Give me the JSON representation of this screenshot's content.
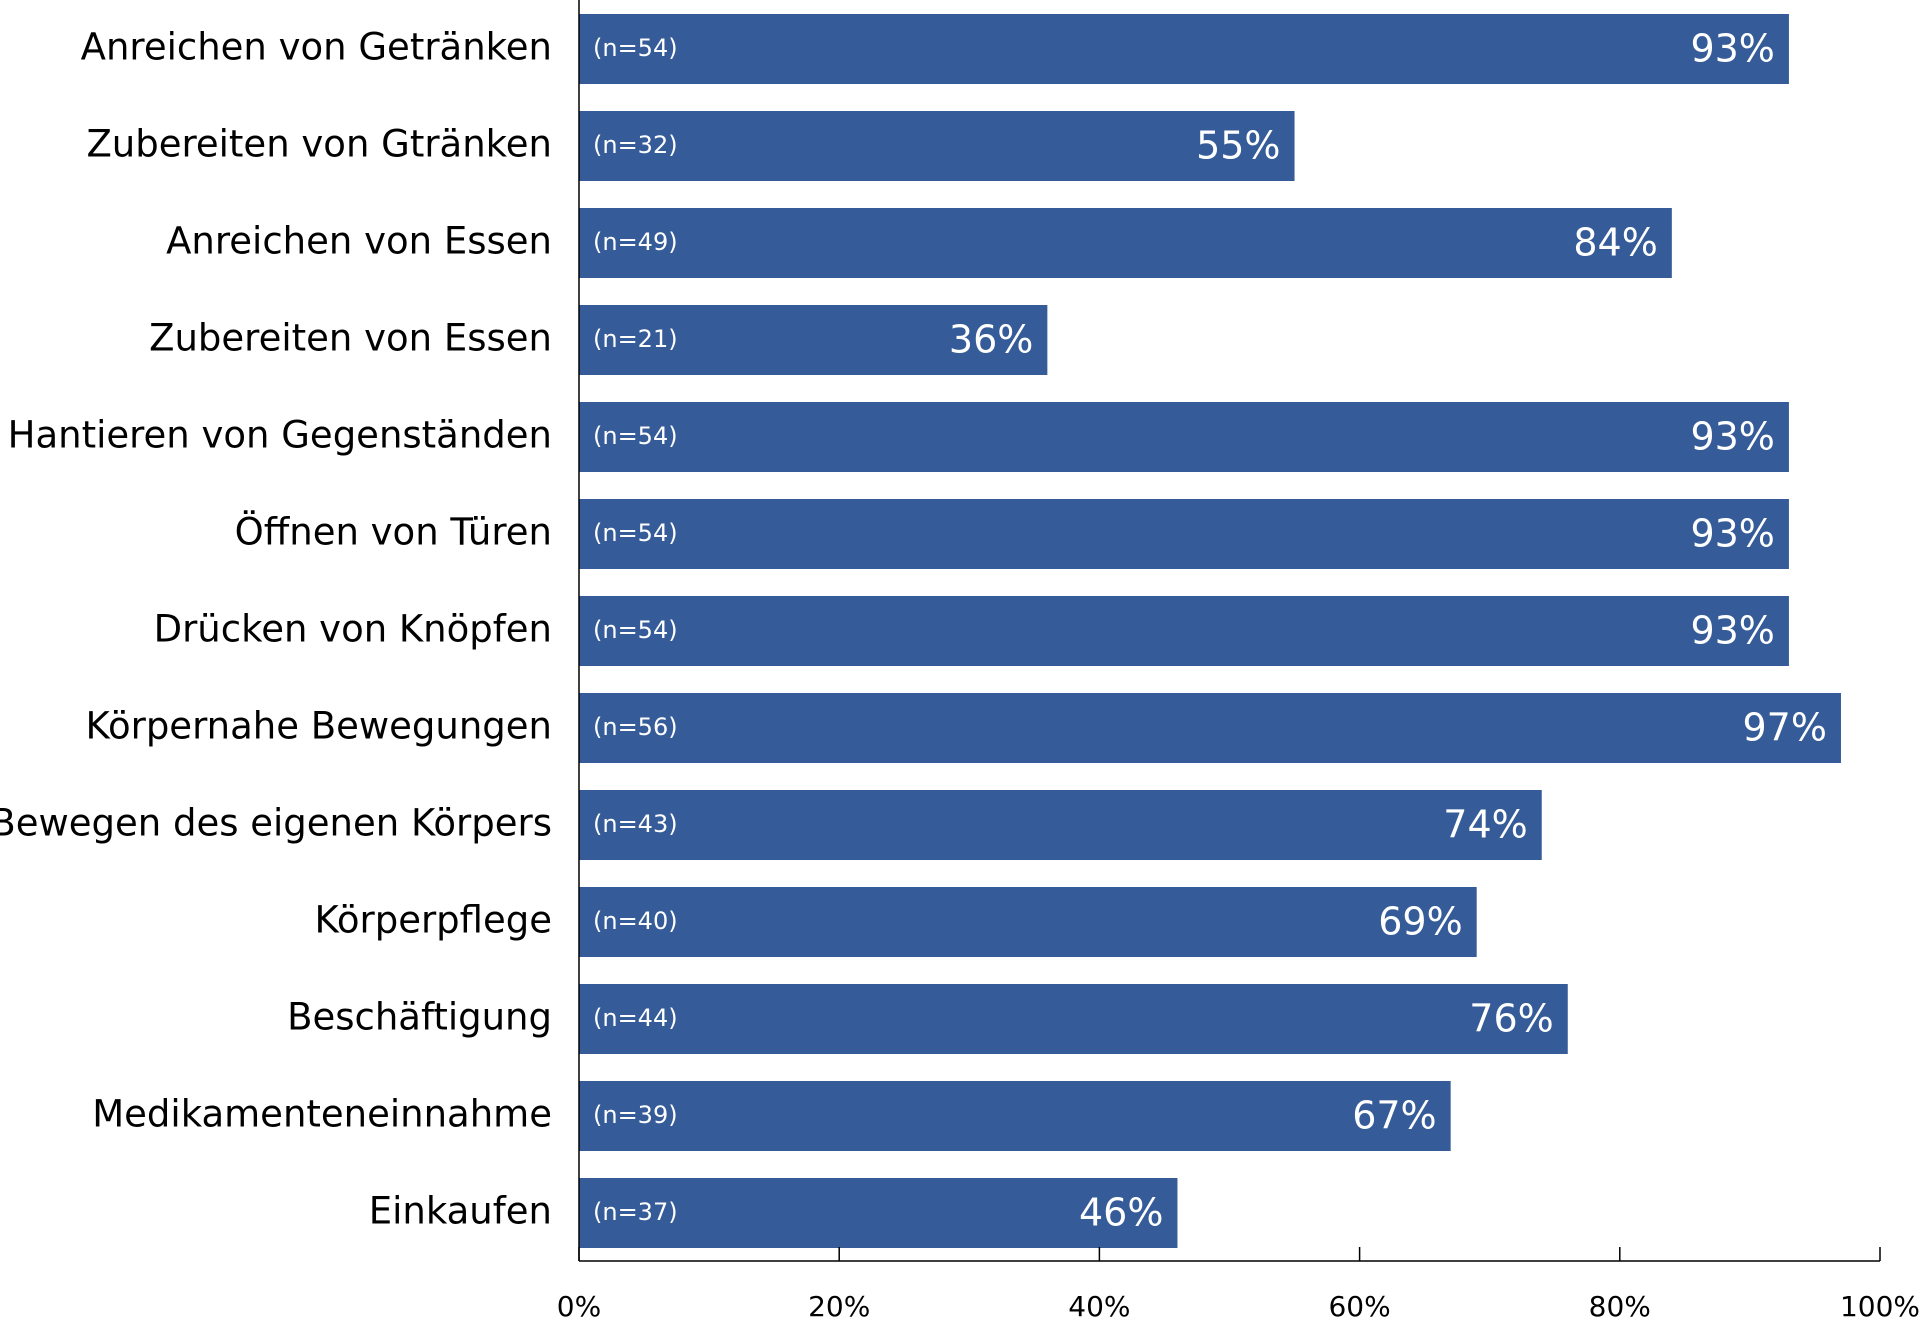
{
  "chart_data": {
    "type": "bar",
    "orientation": "horizontal",
    "categories": [
      "Anreichen von Getränken",
      "Zubereiten von Gtränken",
      "Anreichen von Essen",
      "Zubereiten von Essen",
      "Hantieren von Gegenständen",
      "Öffnen von Türen",
      "Drücken von Knöpfen",
      "Körpernahe Bewegungen",
      "Bewegen des eigenen Körpers",
      "Körperpflege",
      "Beschäftigung",
      "Medikamenteneinnahme",
      "Einkaufen"
    ],
    "values": [
      93,
      55,
      84,
      36,
      93,
      93,
      93,
      97,
      74,
      69,
      76,
      67,
      46
    ],
    "value_labels": [
      "93%",
      "55%",
      "84%",
      "36%",
      "93%",
      "93%",
      "93%",
      "97%",
      "74%",
      "69%",
      "76%",
      "67%",
      "46%"
    ],
    "n_labels": [
      "(n=54)",
      "(n=32)",
      "(n=49)",
      "(n=21)",
      "(n=54)",
      "(n=54)",
      "(n=54)",
      "(n=56)",
      "(n=43)",
      "(n=40)",
      "(n=44)",
      "(n=39)",
      "(n=37)"
    ],
    "color": "#355c99",
    "xlim": [
      0,
      100
    ],
    "xticks": [
      {
        "value": 0,
        "label": "0%"
      },
      {
        "value": 20,
        "label": "20%"
      },
      {
        "value": 40,
        "label": "40%"
      },
      {
        "value": 60,
        "label": "60%"
      },
      {
        "value": 80,
        "label": "80%"
      },
      {
        "value": 100,
        "label": "100%"
      }
    ]
  }
}
